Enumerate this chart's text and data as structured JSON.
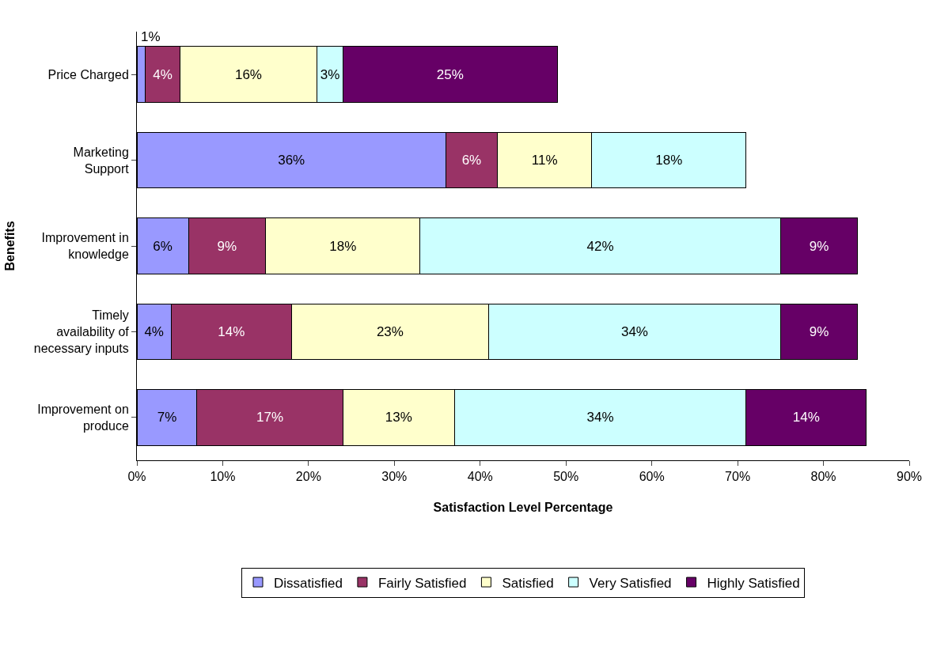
{
  "chart_data": {
    "type": "bar",
    "orientation": "horizontal",
    "stacked": true,
    "xlabel": "Satisfaction Level Percentage",
    "ylabel": "Benefits",
    "categories": [
      "Price Charged",
      "Marketing Support",
      "Improvement in knowledge",
      "Timely availability of necessary inputs",
      "Improvement on produce"
    ],
    "series": [
      {
        "name": "Dissatisfied",
        "color": "#9999ff",
        "values": [
          1,
          36,
          6,
          4,
          7
        ],
        "value_labels": [
          "1%",
          "36%",
          "6%",
          "4%",
          "7%"
        ]
      },
      {
        "name": "Fairly Satisfied",
        "color": "#993366",
        "values": [
          4,
          6,
          9,
          14,
          17
        ],
        "value_labels": [
          "4%",
          "6%",
          "9%",
          "14%",
          "17%"
        ]
      },
      {
        "name": "Satisfied",
        "color": "#ffffcc",
        "values": [
          16,
          11,
          18,
          23,
          13
        ],
        "value_labels": [
          "16%",
          "11%",
          "18%",
          "23%",
          "13%"
        ]
      },
      {
        "name": "Very Satisfied",
        "color": "#ccffff",
        "values": [
          3,
          18,
          42,
          34,
          34
        ],
        "value_labels": [
          "3%",
          "18%",
          "42%",
          "34%",
          "34%"
        ]
      },
      {
        "name": "Highly Satisfied",
        "color": "#660066",
        "values": [
          25,
          null,
          9,
          9,
          14
        ],
        "value_labels": [
          "25%",
          null,
          "9%",
          "9%",
          "14%"
        ]
      }
    ],
    "xlim": [
      0,
      90
    ],
    "xticks": [
      {
        "value": 0,
        "label": "0%"
      },
      {
        "value": 10,
        "label": "10%"
      },
      {
        "value": 20,
        "label": "20%"
      },
      {
        "value": 30,
        "label": "30%"
      },
      {
        "value": 40,
        "label": "40%"
      },
      {
        "value": 50,
        "label": "50%"
      },
      {
        "value": 60,
        "label": "60%"
      },
      {
        "value": 70,
        "label": "70%"
      },
      {
        "value": 80,
        "label": "80%"
      },
      {
        "value": 90,
        "label": "90%"
      }
    ],
    "grid": false,
    "legend": "bottom"
  }
}
